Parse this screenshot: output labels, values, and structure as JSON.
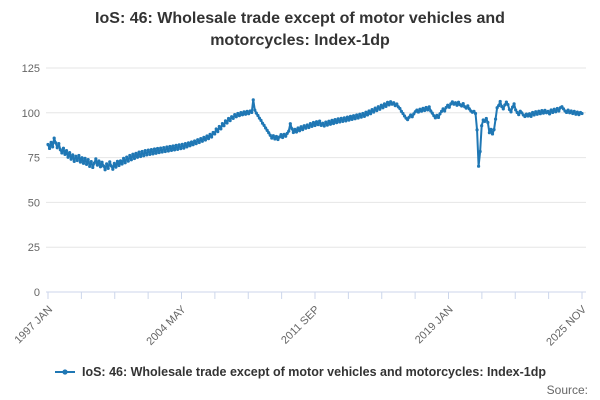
{
  "title": "IoS: 46: Wholesale trade except of motor vehicles and motorcycles: Index-1dp",
  "legend": {
    "series_label": "IoS: 46: Wholesale trade except of motor vehicles and motorcycles: Index-1dp"
  },
  "source_label": "Source:",
  "colors": {
    "series": "#1f77b4",
    "grid": "#e6e6e6",
    "axis": "#ccd6eb",
    "tick_label": "#666666",
    "title_text": "#333333"
  },
  "chart_data": {
    "type": "line",
    "title": "IoS: 46: Wholesale trade except of motor vehicles and motorcycles: Index-1dp",
    "xlabel": "",
    "ylabel": "",
    "ylim": [
      0,
      125
    ],
    "yticks": [
      0,
      25,
      50,
      75,
      100,
      125
    ],
    "grid": "horizontal",
    "legend_position": "bottom",
    "x_tick_labels": [
      "1997 JAN",
      "2004 MAY",
      "2011 SEP",
      "2019 JAN",
      "2025 NOV"
    ],
    "x_minor_tick_count": 17,
    "x_label_every_n_ticks": 4,
    "series": [
      {
        "name": "IoS: 46: Wholesale trade except of motor vehicles and motorcycles: Index-1dp",
        "frequency": "monthly",
        "start": "1997 JAN",
        "end": "2025 NOV",
        "values": [
          82.3,
          80.1,
          83.5,
          81.0,
          85.9,
          83.2,
          80.5,
          82.8,
          79.4,
          77.6,
          80.2,
          76.8,
          78.9,
          75.2,
          77.8,
          74.1,
          76.5,
          72.9,
          75.8,
          73.4,
          76.2,
          72.5,
          74.9,
          71.8,
          74.6,
          71.2,
          73.9,
          70.1,
          72.8,
          69.5,
          71.9,
          74.3,
          70.8,
          73.1,
          69.9,
          72.4,
          70.3,
          68.2,
          71.5,
          69.0,
          72.6,
          70.4,
          68.5,
          71.8,
          69.7,
          72.9,
          70.6,
          73.2,
          71.4,
          74.6,
          72.1,
          75.3,
          73.0,
          76.2,
          73.8,
          76.9,
          74.5,
          77.4,
          75.2,
          78.1,
          75.6,
          78.4,
          76.0,
          78.9,
          76.5,
          79.2,
          76.8,
          79.5,
          77.1,
          79.8,
          77.4,
          80.1,
          77.8,
          80.3,
          78.1,
          80.6,
          78.4,
          80.9,
          78.7,
          81.2,
          79.0,
          81.5,
          79.3,
          81.8,
          79.6,
          82.1,
          80.0,
          82.4,
          80.3,
          82.8,
          81.0,
          83.2,
          81.6,
          83.7,
          82.2,
          84.3,
          82.8,
          85.0,
          83.4,
          85.6,
          84.1,
          86.3,
          84.8,
          87.1,
          85.6,
          88.0,
          86.5,
          89.0,
          88.2,
          91.0,
          89.5,
          92.4,
          91.0,
          94.0,
          92.8,
          95.5,
          94.3,
          96.8,
          95.6,
          97.8,
          96.9,
          99.0,
          97.8,
          99.6,
          98.4,
          100.1,
          98.9,
          100.5,
          99.2,
          100.8,
          99.5,
          101.0,
          100.2,
          107.2,
          101.5,
          99.8,
          98.5,
          97.0,
          95.8,
          94.2,
          93.0,
          91.5,
          90.2,
          88.9,
          87.5,
          85.9,
          87.2,
          85.4,
          86.8,
          85.1,
          86.5,
          87.8,
          86.2,
          88.0,
          86.9,
          88.5,
          89.8,
          93.9,
          91.2,
          89.0,
          90.8,
          89.3,
          91.5,
          90.0,
          92.2,
          90.6,
          92.8,
          91.4,
          93.2,
          91.8,
          94.0,
          92.4,
          94.6,
          92.9,
          95.0,
          93.4,
          95.4,
          93.0,
          94.2,
          92.6,
          94.8,
          93.1,
          95.3,
          93.6,
          95.8,
          94.0,
          96.2,
          94.5,
          96.6,
          94.9,
          96.9,
          95.2,
          97.2,
          95.5,
          97.6,
          95.9,
          98.0,
          96.3,
          98.4,
          96.7,
          98.8,
          97.1,
          99.2,
          97.6,
          99.6,
          98.0,
          100.3,
          98.8,
          101.0,
          99.5,
          101.8,
          100.4,
          102.6,
          101.2,
          103.4,
          102.0,
          104.2,
          102.8,
          105.0,
          103.6,
          105.8,
          104.4,
          106.2,
          104.8,
          105.6,
          104.0,
          104.9,
          103.3,
          102.4,
          100.8,
          99.6,
          98.2,
          97.0,
          96.2,
          97.5,
          98.8,
          97.8,
          99.4,
          100.6,
          101.5,
          100.4,
          102.0,
          100.9,
          102.5,
          101.3,
          103.0,
          101.6,
          103.3,
          101.0,
          99.8,
          98.4,
          97.2,
          98.6,
          97.4,
          99.5,
          100.8,
          102.2,
          101.0,
          103.0,
          104.2,
          103.1,
          105.0,
          106.1,
          104.8,
          105.6,
          104.2,
          105.9,
          104.5,
          103.8,
          105.1,
          103.4,
          102.6,
          103.9,
          102.2,
          101.0,
          100.3,
          100.8,
          99.6,
          90.5,
          70.2,
          78.4,
          92.8,
          96.0,
          95.2,
          96.8,
          94.6,
          88.9,
          90.8,
          88.2,
          90.6,
          96.5,
          102.8,
          104.0,
          106.3,
          103.5,
          102.2,
          104.4,
          106.0,
          104.6,
          101.8,
          100.5,
          103.2,
          105.0,
          101.6,
          100.2,
          99.0,
          100.9,
          100.0,
          98.8,
          97.9,
          99.3,
          98.2,
          99.5,
          98.0,
          100.2,
          98.8,
          100.6,
          99.2,
          100.9,
          99.5,
          101.2,
          99.8,
          101.4,
          100.0,
          100.8,
          99.4,
          101.6,
          100.2,
          102.0,
          100.6,
          102.4,
          101.0,
          102.8,
          103.4,
          102.2,
          101.0,
          100.2,
          101.5,
          100.0,
          101.0,
          99.6,
          100.8,
          99.2,
          100.4,
          99.0,
          100.2,
          99.6
        ]
      }
    ]
  }
}
